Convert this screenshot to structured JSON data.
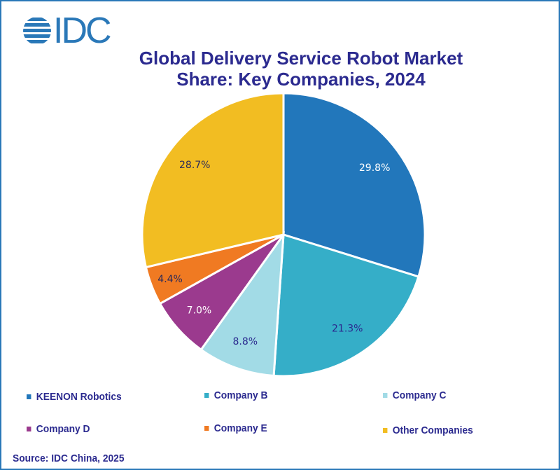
{
  "logo_text": "IDC",
  "chart_data": {
    "type": "pie",
    "title": "Global Delivery Service Robot Market Share: Key Companies, 2024",
    "title_lines": [
      "Global Delivery Service Robot Market",
      "Share: Key Companies, 2024"
    ],
    "start_angle": "12 o'clock",
    "direction": "clockwise",
    "legend_position": "bottom",
    "slices": [
      {
        "name": "KEENON Robotics",
        "value": 29.8,
        "label": "29.8%",
        "color": "#2277bb",
        "label_color": "#ffffff"
      },
      {
        "name": "Company B",
        "value": 21.3,
        "label": "21.3%",
        "color": "#35aec8",
        "label_color": "#2b2a8f"
      },
      {
        "name": "Company C",
        "value": 8.8,
        "label": "8.8%",
        "color": "#a2dbe6",
        "label_color": "#2b2a8f"
      },
      {
        "name": "Company D",
        "value": 7.0,
        "label": "7.0%",
        "color": "#9b3a8e",
        "label_color": "#ffffff"
      },
      {
        "name": "Company E",
        "value": 4.4,
        "label": "4.4%",
        "color": "#f07a22",
        "label_color": "#2a2a5a"
      },
      {
        "name": "Other Companies",
        "value": 28.7,
        "label": "28.7%",
        "color": "#f2bd22",
        "label_color": "#2a2a5a"
      }
    ]
  },
  "source": "Source: IDC China, 2025"
}
